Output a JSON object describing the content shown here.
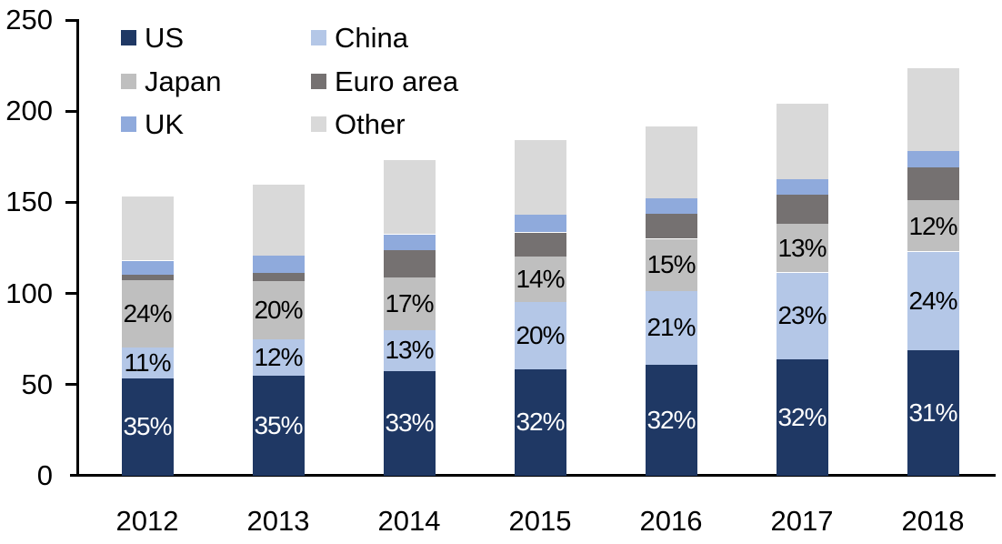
{
  "chart_data": {
    "type": "bar",
    "variant": "stacked-column",
    "title": "",
    "xlabel": "",
    "ylabel": "",
    "categories": [
      "2012",
      "2013",
      "2014",
      "2015",
      "2016",
      "2017",
      "2018"
    ],
    "series": [
      {
        "name": "US",
        "color": "#1f3864",
        "label_color": "#ffffff",
        "values": [
          53.5,
          55,
          57.5,
          58.5,
          61,
          64,
          69
        ],
        "pct_labels": [
          "35%",
          "35%",
          "33%",
          "32%",
          "32%",
          "32%",
          "31%"
        ]
      },
      {
        "name": "China",
        "color": "#b4c7e7",
        "label_color": "#000000",
        "values": [
          17,
          20,
          22.5,
          37,
          40.5,
          47.5,
          54
        ],
        "pct_labels": [
          "11%",
          "12%",
          "13%",
          "20%",
          "21%",
          "23%",
          "24%"
        ]
      },
      {
        "name": "Japan",
        "color": "#bfbfbf",
        "label_color": "#000000",
        "values": [
          37,
          32,
          29,
          25,
          28.5,
          26.5,
          28
        ],
        "pct_labels": [
          "24%",
          "20%",
          "17%",
          "14%",
          "15%",
          "13%",
          "12%"
        ]
      },
      {
        "name": "Euro area",
        "color": "#757171",
        "values": [
          3,
          4.5,
          15,
          13,
          13.5,
          16,
          18
        ]
      },
      {
        "name": "UK",
        "color": "#8faadc",
        "values": [
          7.5,
          9.5,
          8.5,
          9.5,
          8.5,
          8.5,
          9
        ]
      },
      {
        "name": "Other",
        "color": "#d9d9d9",
        "values": [
          35,
          38.5,
          40.5,
          41,
          39.5,
          41.5,
          45.5
        ]
      }
    ],
    "stack_order_bottom_to_top": [
      "US",
      "China",
      "Japan",
      "Euro area",
      "UK",
      "Other"
    ],
    "legend": {
      "position": "top-left",
      "columns": 2,
      "items": [
        "US",
        "China",
        "Japan",
        "Euro area",
        "UK",
        "Other"
      ]
    },
    "y_axis": {
      "ticks": [
        0,
        50,
        100,
        150,
        200,
        250
      ],
      "lim": [
        0,
        250
      ]
    },
    "grid": false,
    "axis_color": "#000000",
    "text_color": "#000000",
    "background": "#ffffff"
  }
}
